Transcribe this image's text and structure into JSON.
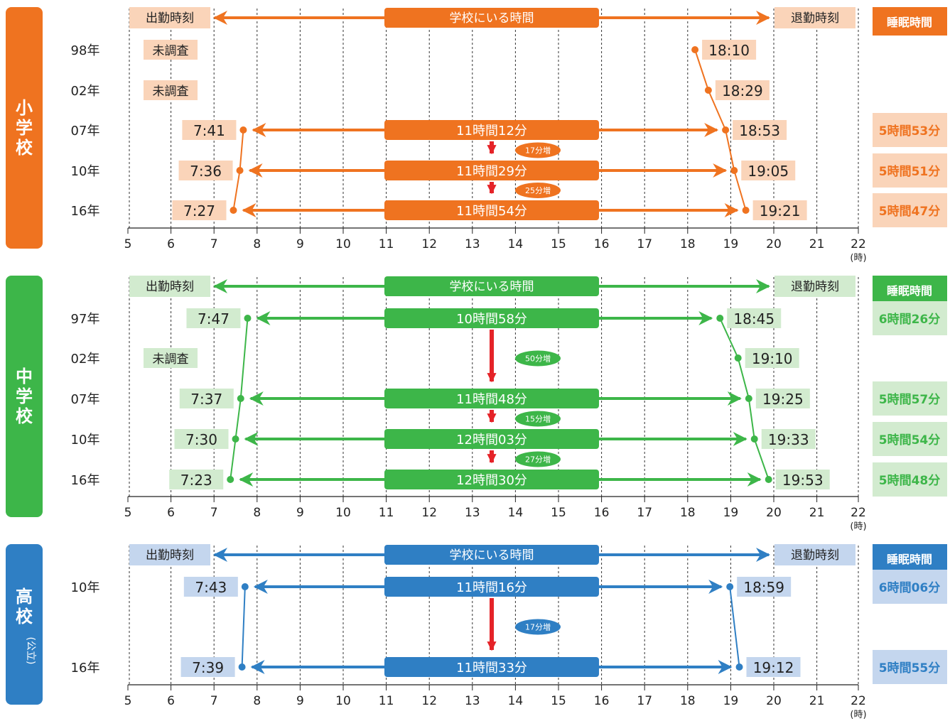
{
  "chart_data": {
    "type": "timeline",
    "x_axis": {
      "ticks": [
        "5",
        "6",
        "7",
        "8",
        "9",
        "10",
        "11",
        "12",
        "13",
        "14",
        "15",
        "16",
        "17",
        "18",
        "19",
        "20",
        "21",
        "22"
      ],
      "unit_label": "(時)",
      "range": [
        5,
        22
      ]
    },
    "header_labels": {
      "arrive": "出勤時刻",
      "at_school": "学校にいる時間",
      "leave": "退勤時刻",
      "sleep": "睡眠時間"
    },
    "panels": [
      {
        "name": "小学校",
        "sub": "",
        "color": "#ef7320",
        "light": "#fad4b9",
        "rows": [
          {
            "year": "98年",
            "arrive": null,
            "arrive_label": "未調査",
            "leave": 18.17,
            "leave_label": "18:10",
            "duration": "",
            "sleep": ""
          },
          {
            "year": "02年",
            "arrive": null,
            "arrive_label": "未調査",
            "leave": 18.48,
            "leave_label": "18:29",
            "duration": "",
            "sleep": ""
          },
          {
            "year": "07年",
            "arrive": 7.68,
            "arrive_label": "7:41",
            "leave": 18.88,
            "leave_label": "18:53",
            "duration": "11時間12分",
            "sleep": "5時間53分"
          },
          {
            "year": "10年",
            "arrive": 7.6,
            "arrive_label": "7:36",
            "leave": 19.08,
            "leave_label": "19:05",
            "duration": "11時間29分",
            "sleep": "5時間51分"
          },
          {
            "year": "16年",
            "arrive": 7.45,
            "arrive_label": "7:27",
            "leave": 19.35,
            "leave_label": "19:21",
            "duration": "11時間54分",
            "sleep": "5時間47分"
          }
        ],
        "increases": [
          {
            "between": [
              2,
              3
            ],
            "label": "17分増"
          },
          {
            "between": [
              3,
              4
            ],
            "label": "25分増"
          }
        ]
      },
      {
        "name": "中学校",
        "sub": "",
        "color": "#3db649",
        "light": "#d2ebcf",
        "rows": [
          {
            "year": "97年",
            "arrive": 7.78,
            "arrive_label": "7:47",
            "leave": 18.75,
            "leave_label": "18:45",
            "duration": "10時間58分",
            "sleep": "6時間26分"
          },
          {
            "year": "02年",
            "arrive": null,
            "arrive_label": "未調査",
            "leave": 19.17,
            "leave_label": "19:10",
            "duration": "",
            "sleep": ""
          },
          {
            "year": "07年",
            "arrive": 7.62,
            "arrive_label": "7:37",
            "leave": 19.42,
            "leave_label": "19:25",
            "duration": "11時間48分",
            "sleep": "5時間57分"
          },
          {
            "year": "10年",
            "arrive": 7.5,
            "arrive_label": "7:30",
            "leave": 19.55,
            "leave_label": "19:33",
            "duration": "12時間03分",
            "sleep": "5時間54分"
          },
          {
            "year": "16年",
            "arrive": 7.38,
            "arrive_label": "7:23",
            "leave": 19.88,
            "leave_label": "19:53",
            "duration": "12時間30分",
            "sleep": "5時間48分"
          }
        ],
        "increases": [
          {
            "between": [
              0,
              2
            ],
            "label": "50分増"
          },
          {
            "between": [
              2,
              3
            ],
            "label": "15分増"
          },
          {
            "between": [
              3,
              4
            ],
            "label": "27分増"
          }
        ]
      },
      {
        "name": "高校",
        "sub": "(公立)",
        "color": "#2f7fc4",
        "light": "#c4d6ee",
        "rows": [
          {
            "year": "10年",
            "arrive": 7.72,
            "arrive_label": "7:43",
            "leave": 18.98,
            "leave_label": "18:59",
            "duration": "11時間16分",
            "sleep": "6時間06分"
          },
          {
            "year": "16年",
            "arrive": 7.65,
            "arrive_label": "7:39",
            "leave": 19.2,
            "leave_label": "19:12",
            "duration": "11時間33分",
            "sleep": "5時間55分"
          }
        ],
        "increases": [
          {
            "between": [
              0,
              1
            ],
            "label": "17分増"
          }
        ]
      }
    ]
  }
}
